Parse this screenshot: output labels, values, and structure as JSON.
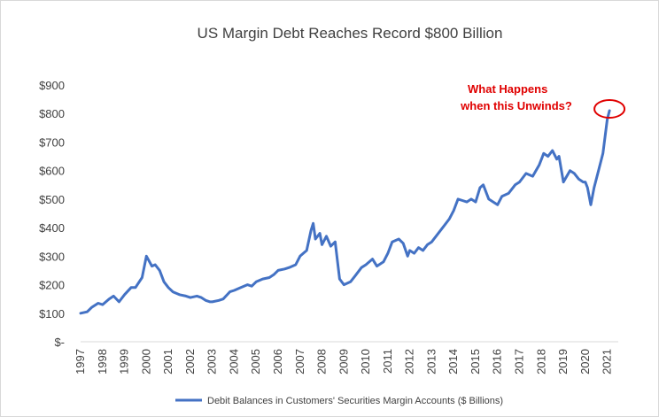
{
  "chart_data": {
    "type": "line",
    "title": "US Margin Debt Reaches Record $800 Billion",
    "xlabel": "",
    "ylabel": "",
    "x_ticks": [
      "1997",
      "1998",
      "1999",
      "2000",
      "2001",
      "2002",
      "2003",
      "2004",
      "2005",
      "2006",
      "2007",
      "2008",
      "2009",
      "2010",
      "2011",
      "2012",
      "2013",
      "2014",
      "2015",
      "2016",
      "2017",
      "2018",
      "2019",
      "2020",
      "2021"
    ],
    "y_ticks": [
      "$-",
      "$100",
      "$200",
      "$300",
      "$400",
      "$500",
      "$600",
      "$700",
      "$800",
      "$900"
    ],
    "xlim": [
      1997,
      2021.5
    ],
    "ylim": [
      0,
      900
    ],
    "grid": false,
    "legend_position": "bottom",
    "annotation": {
      "lines": [
        "What Happens",
        "when this Unwinds?"
      ],
      "color": "#e00000"
    },
    "series": [
      {
        "name": "Debit Balances in Customers' Securities Margin Accounts ($ Billions)",
        "color": "#4472c4",
        "x": [
          1997.0,
          1997.3,
          1997.5,
          1997.8,
          1998.0,
          1998.3,
          1998.5,
          1998.75,
          1999.0,
          1999.3,
          1999.5,
          1999.8,
          2000.0,
          2000.25,
          2000.4,
          2000.6,
          2000.8,
          2001.0,
          2001.2,
          2001.5,
          2001.8,
          2002.0,
          2002.3,
          2002.5,
          2002.7,
          2002.9,
          2003.0,
          2003.3,
          2003.5,
          2003.8,
          2004.0,
          2004.3,
          2004.6,
          2004.8,
          2005.0,
          2005.3,
          2005.6,
          2005.8,
          2006.0,
          2006.3,
          2006.5,
          2006.8,
          2007.0,
          2007.3,
          2007.5,
          2007.6,
          2007.7,
          2007.9,
          2008.0,
          2008.2,
          2008.4,
          2008.6,
          2008.8,
          2009.0,
          2009.3,
          2009.5,
          2009.8,
          2010.0,
          2010.3,
          2010.5,
          2010.8,
          2011.0,
          2011.2,
          2011.5,
          2011.7,
          2011.9,
          2012.0,
          2012.2,
          2012.4,
          2012.6,
          2012.8,
          2013.0,
          2013.3,
          2013.5,
          2013.8,
          2014.0,
          2014.2,
          2014.4,
          2014.6,
          2014.8,
          2015.0,
          2015.2,
          2015.35,
          2015.6,
          2015.8,
          2016.0,
          2016.2,
          2016.5,
          2016.8,
          2017.0,
          2017.3,
          2017.6,
          2017.9,
          2018.0,
          2018.1,
          2018.3,
          2018.5,
          2018.7,
          2018.8,
          2019.0,
          2019.3,
          2019.5,
          2019.7,
          2019.9,
          2020.0,
          2020.1,
          2020.25,
          2020.4,
          2020.6,
          2020.8,
          2021.0,
          2021.1
        ],
        "values": [
          100,
          105,
          120,
          135,
          130,
          150,
          160,
          140,
          165,
          190,
          190,
          225,
          300,
          265,
          270,
          250,
          210,
          190,
          175,
          165,
          160,
          155,
          160,
          155,
          145,
          140,
          140,
          145,
          150,
          175,
          180,
          190,
          200,
          195,
          210,
          220,
          225,
          235,
          250,
          255,
          260,
          270,
          300,
          320,
          390,
          415,
          360,
          380,
          340,
          370,
          335,
          350,
          220,
          200,
          210,
          230,
          260,
          270,
          290,
          265,
          280,
          310,
          350,
          360,
          345,
          300,
          320,
          310,
          330,
          320,
          340,
          350,
          380,
          400,
          430,
          460,
          500,
          495,
          490,
          500,
          490,
          540,
          550,
          500,
          490,
          480,
          510,
          520,
          550,
          560,
          590,
          580,
          620,
          640,
          660,
          650,
          670,
          640,
          650,
          560,
          600,
          590,
          570,
          560,
          560,
          540,
          480,
          540,
          600,
          660,
          780,
          810
        ]
      }
    ]
  }
}
